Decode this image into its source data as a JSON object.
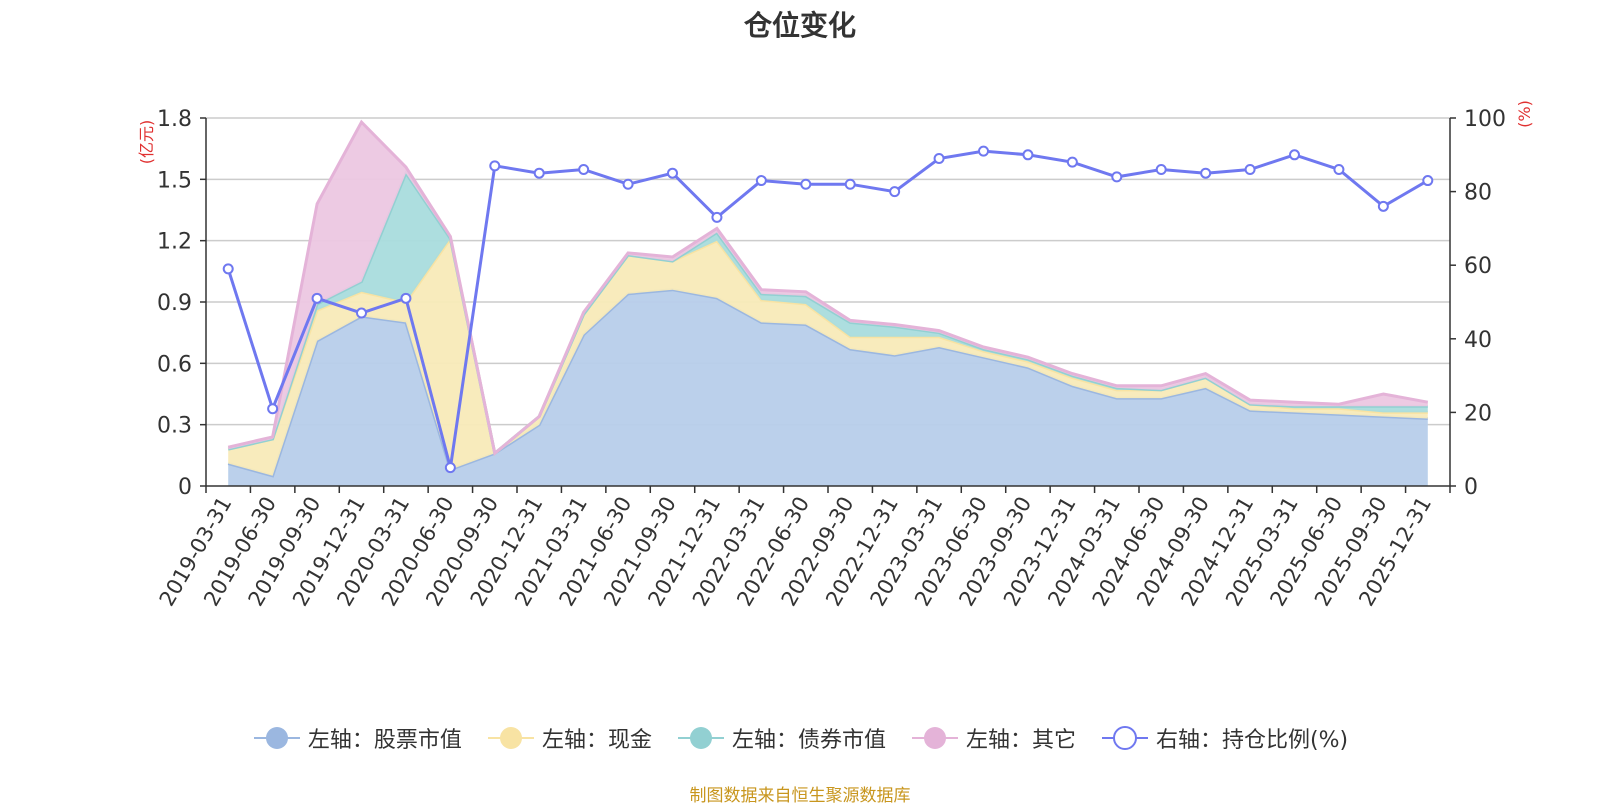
{
  "chart_data": {
    "type": "area",
    "title": "仓位变化",
    "ylabel": "(亿元)",
    "y2label": "(%)",
    "ylim": [
      0,
      1.8
    ],
    "y2lim": [
      0,
      100
    ],
    "yticks": [
      "0",
      "0.3",
      "0.6",
      "0.9",
      "1.2",
      "1.5",
      "1.8"
    ],
    "y2ticks": [
      "0",
      "20",
      "40",
      "60",
      "80",
      "100"
    ],
    "categories": [
      "2019-03-31",
      "2019-06-30",
      "2019-09-30",
      "2019-12-31",
      "2020-03-31",
      "2020-06-30",
      "2020-09-30",
      "2020-12-31",
      "2021-03-31",
      "2021-06-30",
      "2021-09-30",
      "2021-12-31",
      "2022-03-31",
      "2022-06-30",
      "2022-09-30",
      "2022-12-31",
      "2023-03-31",
      "2023-06-30",
      "2023-09-30",
      "2023-12-31",
      "2024-03-31",
      "2024-06-30",
      "2024-09-30",
      "2024-12-31",
      "2025-03-31",
      "2025-06-30",
      "2025-09-30",
      "2025-12-31"
    ],
    "series": [
      {
        "name": "左轴：股票市值",
        "axis": "left",
        "color": "#9bb7e0",
        "fill": "#b7cdea",
        "values": [
          0.11,
          0.05,
          0.71,
          0.83,
          0.8,
          0.08,
          0.16,
          0.3,
          0.74,
          0.94,
          0.96,
          0.92,
          0.8,
          0.79,
          0.67,
          0.64,
          0.68,
          0.63,
          0.58,
          0.49,
          0.43,
          0.43,
          0.48,
          0.37,
          0.36,
          0.35,
          0.34,
          0.33
        ]
      },
      {
        "name": "左轴：现金",
        "axis": "left",
        "color": "#f8e3a3",
        "fill": "#f8eab8",
        "values": [
          0.07,
          0.18,
          0.15,
          0.12,
          0.1,
          1.13,
          0.0,
          0.04,
          0.1,
          0.19,
          0.14,
          0.28,
          0.11,
          0.1,
          0.06,
          0.09,
          0.05,
          0.03,
          0.03,
          0.04,
          0.04,
          0.04,
          0.05,
          0.03,
          0.02,
          0.03,
          0.02,
          0.03
        ]
      },
      {
        "name": "左轴：债券市值",
        "axis": "left",
        "color": "#92d0d2",
        "fill": "#a9dcdd",
        "values": [
          0.0,
          0.0,
          0.03,
          0.05,
          0.63,
          0.0,
          0.0,
          0.0,
          0.0,
          0.0,
          0.0,
          0.04,
          0.03,
          0.04,
          0.07,
          0.05,
          0.02,
          0.01,
          0.01,
          0.01,
          0.01,
          0.0,
          0.0,
          0.0,
          0.01,
          0.01,
          0.03,
          0.03
        ]
      },
      {
        "name": "左轴：其它",
        "axis": "left",
        "color": "#e4b3d8",
        "fill": "#ecc7e2",
        "values": [
          0.01,
          0.01,
          0.49,
          0.78,
          0.03,
          0.01,
          0.0,
          0.0,
          0.01,
          0.01,
          0.02,
          0.02,
          0.02,
          0.02,
          0.01,
          0.01,
          0.01,
          0.01,
          0.01,
          0.01,
          0.01,
          0.02,
          0.02,
          0.02,
          0.02,
          0.01,
          0.06,
          0.02
        ]
      },
      {
        "name": "右轴：持仓比例(%)",
        "axis": "right",
        "color": "#6f78f0",
        "values": [
          59,
          21,
          51,
          47,
          51,
          5,
          87,
          85,
          86,
          82,
          85,
          73,
          83,
          82,
          82,
          80,
          89,
          91,
          90,
          88,
          84,
          86,
          85,
          86,
          90,
          86,
          76,
          83
        ]
      }
    ],
    "legend_position": "bottom",
    "grid": true
  },
  "source_note": "制图数据来自恒生聚源数据库"
}
